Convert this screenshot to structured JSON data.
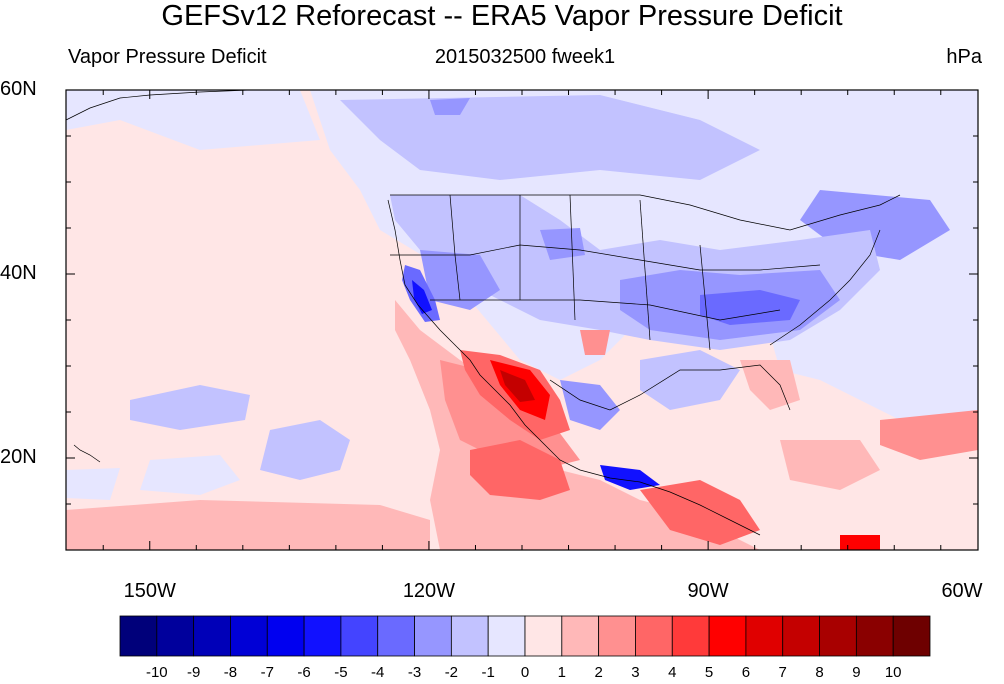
{
  "header": {
    "title": "GEFSv12 Reforecast -- ERA5 Vapor Pressure Deficit",
    "left": "Vapor Pressure Deficit",
    "center": "2015032500 fweek1",
    "right": "hPa"
  },
  "axes": {
    "lat_ticks": [
      {
        "label": "60N",
        "value": 60
      },
      {
        "label": "40N",
        "value": 40
      },
      {
        "label": "20N",
        "value": 20
      }
    ],
    "lon_ticks": [
      {
        "label": "150W",
        "value": -150
      },
      {
        "label": "120W",
        "value": -120
      },
      {
        "label": "90W",
        "value": -90
      },
      {
        "label": "60W",
        "value": -60
      }
    ],
    "lon_range": [
      -159,
      -61
    ],
    "lat_range": [
      10,
      60
    ]
  },
  "colorbar": {
    "labels": [
      "-10",
      "-9",
      "-8",
      "-7",
      "-6",
      "-5",
      "-4",
      "-3",
      "-2",
      "-1",
      "0",
      "1",
      "2",
      "3",
      "4",
      "5",
      "6",
      "7",
      "8",
      "9",
      "10"
    ],
    "colors": [
      "#00007a",
      "#00009c",
      "#0000b8",
      "#0000d6",
      "#0000f0",
      "#1111ff",
      "#4444ff",
      "#6a6aff",
      "#9696ff",
      "#c2c2ff",
      "#e6e6ff",
      "#ffe6e6",
      "#ffb8b8",
      "#ff9090",
      "#ff6666",
      "#ff3a3a",
      "#ff0000",
      "#e00000",
      "#c40000",
      "#a80000",
      "#8a0000",
      "#6e0000"
    ]
  },
  "chart_data": {
    "type": "heatmap",
    "title": "GEFSv12 Reforecast -- ERA5 Vapor Pressure Deficit",
    "variable": "Vapor Pressure Deficit",
    "units": "hPa",
    "time": "2015032500 fweek1",
    "levels": [
      -10,
      -9,
      -8,
      -7,
      -6,
      -5,
      -4,
      -3,
      -2,
      -1,
      0,
      1,
      2,
      3,
      4,
      5,
      6,
      7,
      8,
      9,
      10
    ],
    "regions": [
      {
        "lon": -140,
        "lat": 45,
        "value": 0.5
      },
      {
        "lon": -110,
        "lat": 55,
        "value": -1.0
      },
      {
        "lon": -85,
        "lat": 37,
        "value": -3.0
      },
      {
        "lon": -106,
        "lat": 26,
        "value": 5.5
      },
      {
        "lon": -107,
        "lat": 18,
        "value": 4.0
      },
      {
        "lon": -118,
        "lat": 36,
        "value": -5.0
      },
      {
        "lon": -140,
        "lat": 22,
        "value": -1.5
      },
      {
        "lon": -80,
        "lat": 20,
        "value": 1.5
      }
    ]
  }
}
